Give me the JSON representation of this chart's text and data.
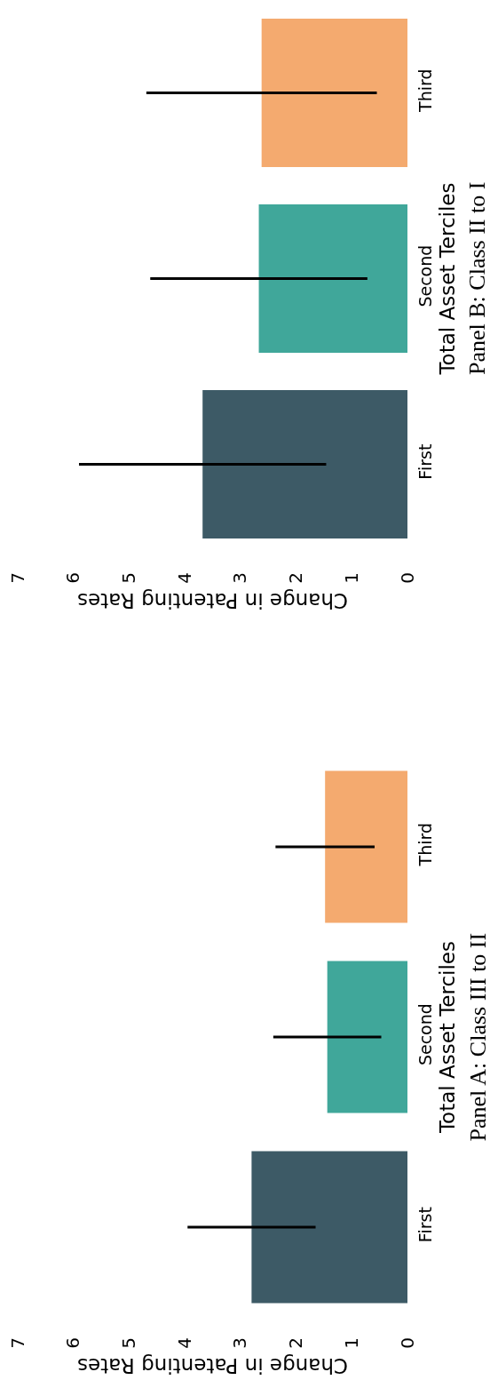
{
  "chart_data": [
    {
      "type": "bar",
      "orientation": "horizontal",
      "annotations": [
        "Panel B: Class II to I"
      ],
      "xlabel": "Change in Patenting Rates",
      "ylabel": "Total Asset Terciles",
      "categories": [
        "Third",
        "Second",
        "First"
      ],
      "values": [
        2.62,
        2.67,
        3.68
      ],
      "errors": [
        2.07,
        1.95,
        2.22
      ],
      "colors": [
        "#f4aa6f",
        "#40a79a",
        "#3d5a66"
      ],
      "xlim": [
        7,
        0
      ],
      "xticks": [
        0,
        1,
        2,
        3,
        4,
        5,
        6,
        7
      ]
    },
    {
      "type": "bar",
      "orientation": "horizontal",
      "annotations": [
        "Panel A: Class III to II"
      ],
      "xlabel": "Change in Patenting Rates",
      "ylabel": "Total Asset Terciles",
      "categories": [
        "Third",
        "Second",
        "First"
      ],
      "values": [
        1.48,
        1.44,
        2.8
      ],
      "errors": [
        0.89,
        0.97,
        1.15
      ],
      "colors": [
        "#f4aa6f",
        "#40a79a",
        "#3d5a66"
      ],
      "xlim": [
        7,
        0
      ],
      "xticks": [
        0,
        1,
        2,
        3,
        4,
        5,
        6,
        7
      ]
    }
  ]
}
